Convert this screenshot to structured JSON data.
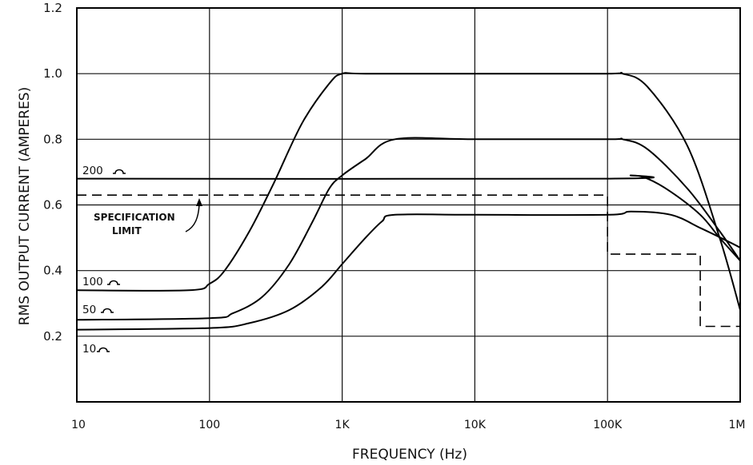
{
  "chart_data": {
    "type": "line",
    "xlabel": "FREQUENCY (Hz)",
    "ylabel": "RMS OUTPUT CURRENT (AMPERES)",
    "x_scale": "log",
    "xlim": [
      10,
      1000000
    ],
    "ylim": [
      0,
      1.2
    ],
    "x_tick_values": [
      10,
      100,
      1000,
      10000,
      100000,
      1000000
    ],
    "x_tick_labels": [
      "10",
      "100",
      "1K",
      "10K",
      "100K",
      "1M"
    ],
    "y_tick_values": [
      0.2,
      0.4,
      0.6,
      0.8,
      1.0,
      1.2
    ],
    "y_tick_labels": [
      "0.2",
      "0.4",
      "0.6",
      "0.8",
      "1.0",
      "1.2"
    ],
    "grid": true,
    "series": [
      {
        "name": "10Ω",
        "x": [
          10,
          100,
          200,
          400,
          700,
          1000,
          1500,
          2000,
          2500,
          10000,
          100000,
          150000,
          300000,
          500000,
          800000,
          1000000
        ],
        "y": [
          0.22,
          0.225,
          0.24,
          0.28,
          0.35,
          0.42,
          0.5,
          0.55,
          0.57,
          0.57,
          0.57,
          0.58,
          0.57,
          0.53,
          0.49,
          0.47
        ]
      },
      {
        "name": "50Ω",
        "x": [
          10,
          100,
          150,
          250,
          400,
          600,
          800,
          1000,
          1500,
          2500,
          10000,
          100000,
          130000,
          200000,
          400000,
          700000,
          1000000
        ],
        "y": [
          0.25,
          0.255,
          0.27,
          0.32,
          0.42,
          0.55,
          0.65,
          0.69,
          0.74,
          0.8,
          0.8,
          0.8,
          0.8,
          0.77,
          0.65,
          0.52,
          0.43
        ]
      },
      {
        "name": "100Ω",
        "x": [
          10,
          70,
          100,
          130,
          200,
          300,
          500,
          800,
          1000,
          1500,
          10000,
          100000,
          130000,
          200000,
          400000,
          700000,
          1000000
        ],
        "y": [
          0.34,
          0.34,
          0.36,
          0.4,
          0.52,
          0.66,
          0.85,
          0.97,
          1.0,
          1.0,
          1.0,
          1.0,
          1.0,
          0.96,
          0.78,
          0.5,
          0.28
        ]
      },
      {
        "name": "200Ω",
        "x": [
          10,
          100000,
          150000,
          200000,
          300000,
          500000,
          700000,
          1000000
        ],
        "y": [
          0.68,
          0.68,
          0.69,
          0.68,
          0.64,
          0.57,
          0.5,
          0.43
        ]
      }
    ],
    "specification_limit": {
      "label": "SPECIFICATION LIMIT",
      "x": [
        10,
        100000,
        100000,
        500000,
        500000,
        1000000
      ],
      "y": [
        0.63,
        0.63,
        0.45,
        0.45,
        0.23,
        0.23
      ]
    }
  },
  "labels": {
    "ohm_200": "200",
    "ohm_100": "100",
    "ohm_50": "50",
    "ohm_10": "10",
    "spec_line1": "SPECIFICATION",
    "spec_line2": "LIMIT"
  }
}
